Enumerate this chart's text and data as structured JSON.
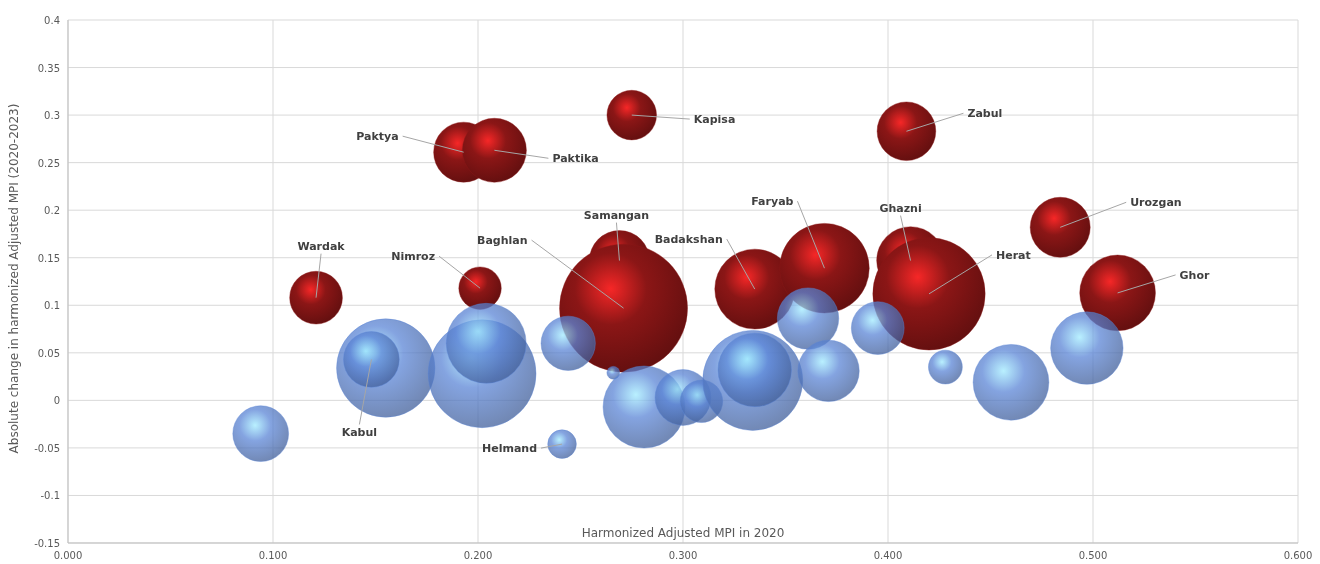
{
  "chart_data": {
    "type": "bubble",
    "xlabel": "Harmonized Adjusted MPI in 2020",
    "ylabel": "Absolute change in harmonized Adjusted MPI (2020-2023)",
    "xlim": [
      0,
      0.6
    ],
    "xticks": [
      {
        "value": 0,
        "label": "0.000"
      },
      {
        "value": 0.1,
        "label": "0.100"
      },
      {
        "value": 0.2,
        "label": "0.200"
      },
      {
        "value": 0.3,
        "label": "0.300"
      },
      {
        "value": 0.4,
        "label": "0.400"
      },
      {
        "value": 0.5,
        "label": "0.500"
      },
      {
        "value": 0.6,
        "label": "0.600"
      }
    ],
    "ylim": [
      -0.15,
      0.4
    ],
    "yticks": [
      -0.15,
      -0.1,
      -0.05,
      0,
      0.05,
      0.1,
      0.15,
      0.2,
      0.25,
      0.3,
      0.35,
      0.4
    ],
    "grid": true,
    "series": [
      {
        "color": "#8b1616",
        "x": [
          0.121,
          0.201,
          0.193,
          0.208,
          0.275,
          0.409,
          0.269,
          0.271,
          0.335,
          0.369,
          0.411,
          0.42,
          0.484,
          0.512
        ],
        "values": [
          0.108,
          0.118,
          0.261,
          0.263,
          0.3,
          0.283,
          0.147,
          0.097,
          0.117,
          0.139,
          0.147,
          0.112,
          0.182,
          0.113
        ],
        "sizes": [
          0.17,
          0.11,
          0.22,
          0.25,
          0.15,
          0.21,
          0.22,
          1,
          0.39,
          0.49,
          0.28,
          0.77,
          0.22,
          0.35
        ]
      },
      {
        "color": "#5b85d6",
        "x": [
          0.155,
          0.148,
          0.094,
          0.202,
          0.204,
          0.244,
          0.266,
          0.241,
          0.281,
          0.3,
          0.309,
          0.334,
          0.335,
          0.361,
          0.371,
          0.395,
          0.428,
          0.46,
          0.497
        ],
        "values": [
          0.034,
          0.043,
          -0.035,
          0.028,
          0.06,
          0.06,
          0.029,
          -0.046,
          -0.007,
          0.003,
          -0.001,
          0.021,
          0.032,
          0.086,
          0.031,
          0.076,
          0.035,
          0.019,
          0.055
        ],
        "sizes": [
          0.59,
          0.19,
          0.19,
          0.71,
          0.39,
          0.18,
          0.01,
          0.05,
          0.41,
          0.19,
          0.11,
          0.61,
          0.33,
          0.23,
          0.23,
          0.17,
          0.07,
          0.35,
          0.32
        ]
      }
    ],
    "annotations": [
      {
        "text": "Wardak",
        "x": 0.121,
        "y": 0.108
      },
      {
        "text": "Nimroz",
        "x": 0.201,
        "y": 0.118
      },
      {
        "text": "Paktya",
        "x": 0.193,
        "y": 0.261
      },
      {
        "text": "Paktika",
        "x": 0.208,
        "y": 0.263
      },
      {
        "text": "Kapisa",
        "x": 0.275,
        "y": 0.3
      },
      {
        "text": "Zabul",
        "x": 0.409,
        "y": 0.283
      },
      {
        "text": "Samangan",
        "x": 0.269,
        "y": 0.147
      },
      {
        "text": "Baghlan",
        "x": 0.271,
        "y": 0.097
      },
      {
        "text": "Badakshan",
        "x": 0.335,
        "y": 0.117
      },
      {
        "text": "Faryab",
        "x": 0.369,
        "y": 0.139
      },
      {
        "text": "Ghazni",
        "x": 0.411,
        "y": 0.147
      },
      {
        "text": "Herat",
        "x": 0.42,
        "y": 0.112
      },
      {
        "text": "Urozgan",
        "x": 0.484,
        "y": 0.182
      },
      {
        "text": "Ghor",
        "x": 0.512,
        "y": 0.113
      },
      {
        "text": "Kabul",
        "x": 0.148,
        "y": 0.043
      },
      {
        "text": "Helmand",
        "x": 0.241,
        "y": -0.046
      }
    ]
  }
}
